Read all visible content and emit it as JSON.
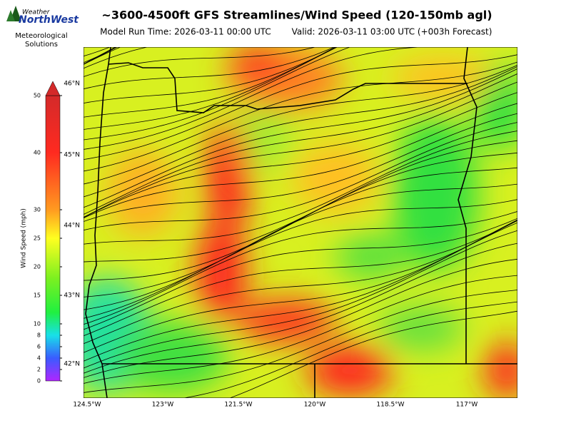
{
  "logo": {
    "top": "Weather",
    "main": "NorthWest",
    "caption": [
      "Meteorological",
      "Solutions"
    ]
  },
  "header": {
    "title": "~3600-4500ft GFS Streamlines/Wind Speed (120-150mb agl)",
    "model_run": "Model Run Time: 2026-03-11 00:00 UTC",
    "valid": "Valid: 2026-03-11 03:00 UTC  (+003h Forecast)"
  },
  "colorbar": {
    "label": "Wind Speed (mph)",
    "lim": [
      0,
      50
    ],
    "ticks": [
      0,
      2,
      4,
      6,
      8,
      10,
      15,
      20,
      25,
      30,
      40,
      50
    ]
  },
  "map": {
    "lon_labels": [
      "124.5°W",
      "123°W",
      "121.5°W",
      "120°W",
      "118.5°W",
      "117°W"
    ],
    "lat_labels": [
      "46°N",
      "45°N",
      "44°N",
      "43°N",
      "42°N"
    ]
  }
}
